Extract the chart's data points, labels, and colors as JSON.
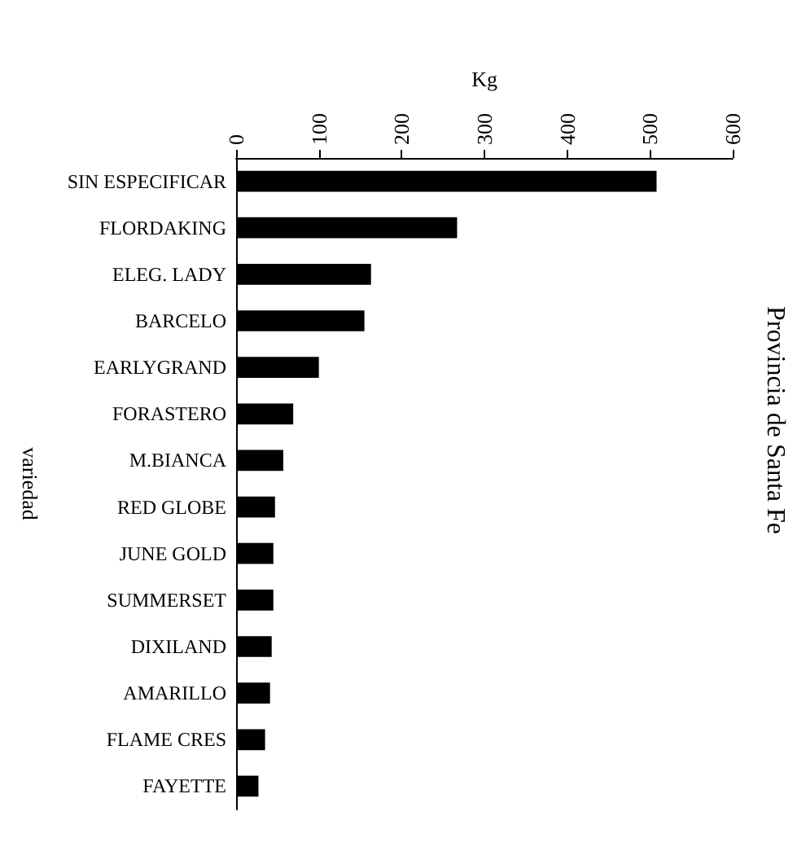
{
  "chart_data": {
    "type": "bar",
    "orientation": "horizontal",
    "title": "Provincia de Santa Fe",
    "xlabel": "Kg",
    "ylabel": "variedad",
    "categories": [
      "SIN ESPECIFICAR",
      "FLORDAKING",
      "ELEG. LADY",
      "BARCELO",
      "EARLYGRAND",
      "FORASTERO",
      "M.BIANCA",
      "RED GLOBE",
      "JUNE GOLD",
      "SUMMERSET",
      "DIXILAND",
      "AMARILLO",
      "FLAME CRES",
      "FAYETTE"
    ],
    "values": [
      508,
      267,
      163,
      155,
      100,
      69,
      57,
      47,
      45,
      45,
      43,
      41,
      35,
      27
    ],
    "color": "#000000",
    "xlim": [
      0,
      600
    ],
    "xticks": [
      0,
      100,
      200,
      300,
      400,
      500,
      600
    ],
    "grid": false
  }
}
